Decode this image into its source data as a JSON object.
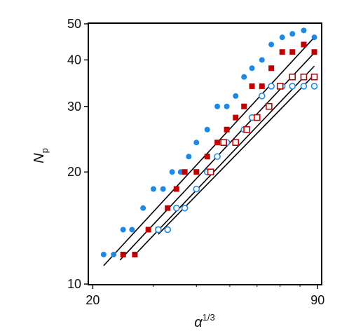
{
  "chart_data": {
    "type": "scatter",
    "title": "",
    "xlabel": "α",
    "xlabel_sup": "1/3",
    "ylabel": "N",
    "ylabel_sub": "p",
    "xscale": "log",
    "yscale": "log",
    "xlim": [
      19.5,
      92
    ],
    "ylim": [
      10,
      50
    ],
    "x_ticks": [
      {
        "value": 20,
        "label": "20"
      },
      {
        "value": 90,
        "label": "90"
      }
    ],
    "y_ticks": [
      {
        "value": 10,
        "label": "10"
      },
      {
        "value": 20,
        "label": "20"
      },
      {
        "value": 30,
        "label": "30"
      },
      {
        "value": 40,
        "label": "40"
      },
      {
        "value": 50,
        "label": "50"
      }
    ],
    "grid": false,
    "legend": "none",
    "series": [
      {
        "marker": "circle",
        "filled": true,
        "color": "#1e88e5",
        "x": [
          21.5,
          23,
          24.5,
          26,
          28,
          30,
          32,
          34,
          36,
          38,
          40,
          43,
          46,
          49,
          52,
          55,
          58,
          62,
          66,
          71,
          76,
          82,
          88
        ],
        "y": [
          12,
          12,
          14,
          14,
          16,
          18,
          18,
          20,
          20,
          22,
          24,
          26,
          30,
          30,
          32,
          36,
          38,
          40,
          44,
          46,
          47,
          48,
          46
        ]
      },
      {
        "marker": "square",
        "filled": true,
        "color": "#c00000",
        "x": [
          24.5,
          26.5,
          29,
          31,
          33,
          35,
          37,
          40,
          43,
          46,
          49,
          52,
          55,
          58,
          62,
          66,
          71,
          76,
          82,
          88
        ],
        "y": [
          12,
          12,
          14,
          14,
          16,
          18,
          20,
          20,
          22,
          24,
          26,
          28,
          30,
          34,
          34,
          38,
          42,
          42,
          44,
          42
        ]
      },
      {
        "marker": "circle",
        "filled": false,
        "color": "#1e88e5",
        "x": [
          31,
          33,
          35,
          37,
          40,
          43,
          46,
          49,
          52,
          55,
          58,
          62,
          66,
          71,
          76,
          82,
          88
        ],
        "y": [
          14,
          14,
          16,
          16,
          18,
          20,
          22,
          24,
          24,
          26,
          28,
          32,
          34,
          34,
          34,
          34,
          34
        ]
      },
      {
        "marker": "square",
        "filled": false,
        "color": "#c00000",
        "x": [
          44,
          48,
          52,
          56,
          60,
          65,
          70,
          76,
          82,
          88
        ],
        "y": [
          20,
          24,
          24,
          26,
          28,
          30,
          34,
          36,
          36,
          36
        ]
      }
    ],
    "fit_lines": [
      {
        "color": "#000000",
        "x": [
          21.5,
          88
        ],
        "y": [
          11.2,
          46
        ]
      },
      {
        "color": "#000000",
        "x": [
          24,
          88
        ],
        "y": [
          11.6,
          41.8
        ]
      },
      {
        "color": "#000000",
        "x": [
          27,
          88
        ],
        "y": [
          12.2,
          38.5
        ]
      },
      {
        "color": "#000000",
        "x": [
          31,
          88
        ],
        "y": [
          13.6,
          36.5
        ]
      }
    ]
  }
}
